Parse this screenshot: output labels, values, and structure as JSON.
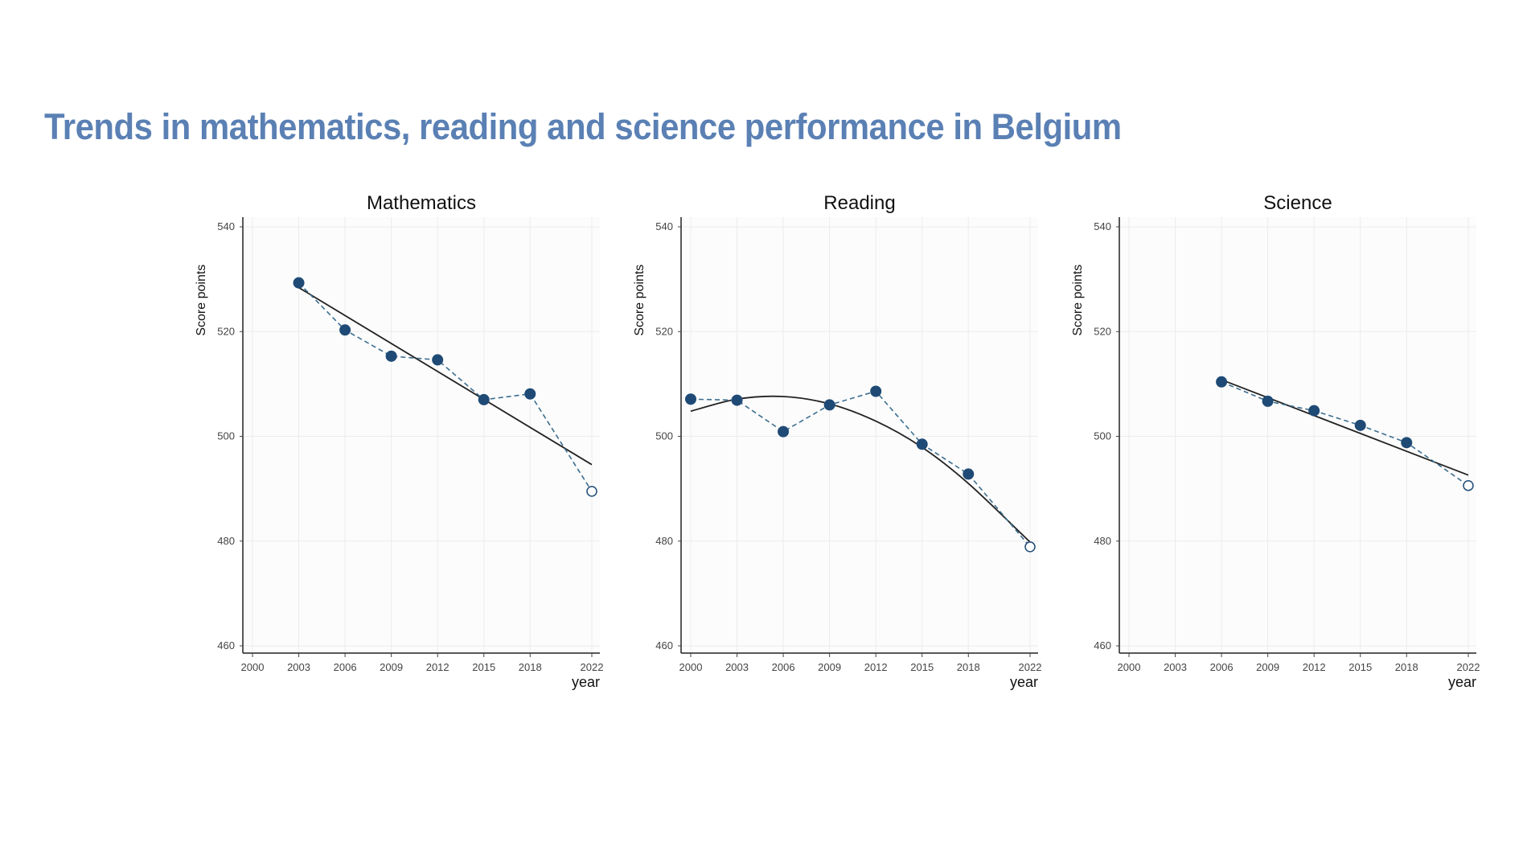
{
  "title": "Trends in mathematics, reading and science performance in Belgium",
  "colors": {
    "title": "#5a80b4",
    "points": "#1f4a75",
    "observed_line": "#3b6e8f",
    "trend_line": "#222222",
    "grid": "#ececec"
  },
  "chart_data": [
    {
      "type": "line",
      "title": "Mathematics",
      "xlabel": "year",
      "ylabel": "Score points",
      "x_ticks": [
        2000,
        2003,
        2006,
        2009,
        2012,
        2015,
        2018,
        2022
      ],
      "y_ticks": [
        460,
        480,
        500,
        520,
        540
      ],
      "xlim": [
        2000,
        2022
      ],
      "ylim": [
        460,
        540
      ],
      "grid": true,
      "series": [
        {
          "kind": "observed",
          "x": [
            2003,
            2006,
            2009,
            2012,
            2015,
            2018,
            2022
          ],
          "y": [
            529.3,
            520.3,
            515.3,
            514.6,
            507.0,
            508.1,
            489.5
          ],
          "hollow_last": true
        },
        {
          "kind": "trend",
          "shape": "linear",
          "x": [
            2003,
            2022
          ],
          "y": [
            528.4,
            494.6
          ]
        }
      ]
    },
    {
      "type": "line",
      "title": "Reading",
      "xlabel": "year",
      "ylabel": "Score points",
      "x_ticks": [
        2000,
        2003,
        2006,
        2009,
        2012,
        2015,
        2018,
        2022
      ],
      "y_ticks": [
        460,
        480,
        500,
        520,
        540
      ],
      "xlim": [
        2000,
        2022
      ],
      "ylim": [
        460,
        540
      ],
      "grid": true,
      "series": [
        {
          "kind": "observed",
          "x": [
            2000,
            2003,
            2006,
            2009,
            2012,
            2015,
            2018,
            2022
          ],
          "y": [
            507.1,
            506.9,
            500.9,
            506.0,
            508.6,
            498.5,
            492.8,
            478.9
          ],
          "hollow_last": true
        },
        {
          "kind": "trend",
          "shape": "quadratic",
          "x": [
            2000,
            2003,
            2006,
            2009,
            2012,
            2015,
            2018,
            2022
          ],
          "y": [
            504.8,
            507.1,
            507.6,
            506.2,
            502.9,
            497.9,
            491.0,
            479.8
          ]
        }
      ]
    },
    {
      "type": "line",
      "title": "Science",
      "xlabel": "year",
      "ylabel": "Score points",
      "x_ticks": [
        2000,
        2003,
        2006,
        2009,
        2012,
        2015,
        2018,
        2022
      ],
      "y_ticks": [
        460,
        480,
        500,
        520,
        540
      ],
      "xlim": [
        2000,
        2022
      ],
      "ylim": [
        460,
        540
      ],
      "grid": true,
      "series": [
        {
          "kind": "observed",
          "x": [
            2006,
            2009,
            2012,
            2015,
            2018,
            2022
          ],
          "y": [
            510.4,
            506.7,
            504.9,
            502.1,
            498.8,
            490.6
          ],
          "hollow_last": true
        },
        {
          "kind": "trend",
          "shape": "linear",
          "x": [
            2006,
            2022
          ],
          "y": [
            510.8,
            492.6
          ]
        }
      ]
    }
  ]
}
